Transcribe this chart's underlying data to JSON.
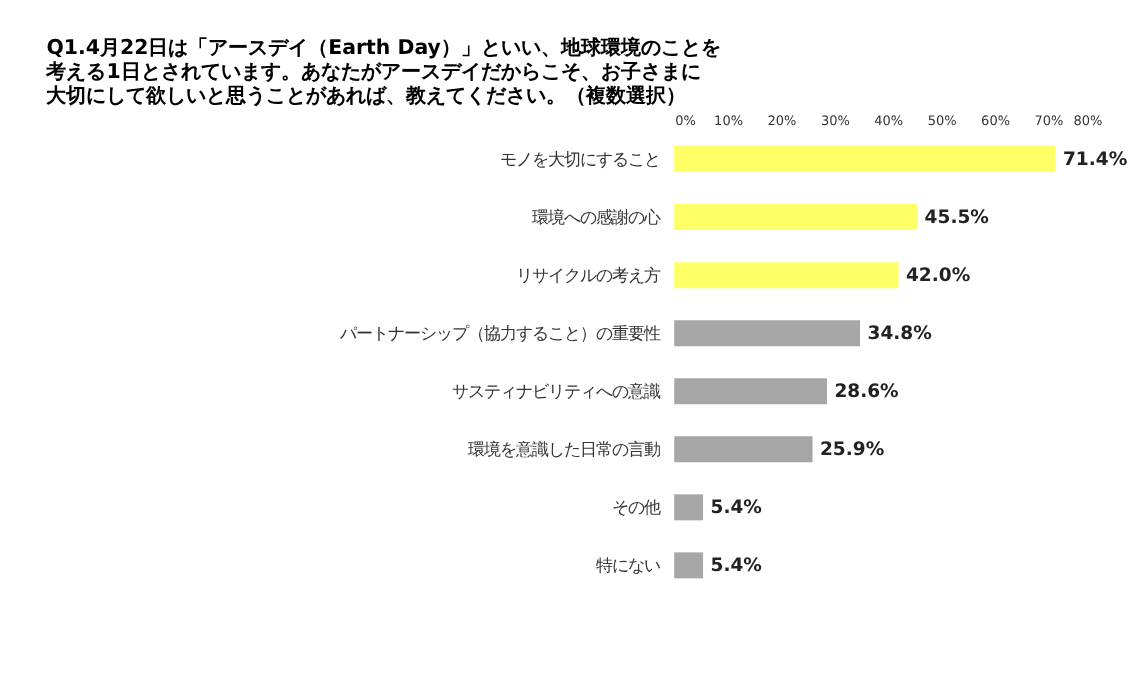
{
  "chart_data": {
    "type": "bar",
    "orientation": "horizontal",
    "title": [
      "Q1.4月22日は「アースデイ（Earth Day）」といい、地球環境のことを",
      "考える1日とされています。あなたがアースデイだからこそ、お子さまに",
      "大切にして欲しいと思うことがあれば、教えてください。（複数選択）"
    ],
    "categories": [
      "モノを大切にすること",
      "環境への感謝の心",
      "リサイクルの考え方",
      "パートナーシップ（協力すること）の重要性",
      "サスティナビリティへの意識",
      "環境を意識した日常の言動",
      "その他",
      "特にない"
    ],
    "values": [
      71.4,
      45.5,
      42.0,
      34.8,
      28.6,
      25.9,
      5.4,
      5.4
    ],
    "colors": [
      "#ffff66",
      "#ffff66",
      "#ffff66",
      "#a6a6a6",
      "#a6a6a6",
      "#a6a6a6",
      "#a6a6a6",
      "#a6a6a6"
    ],
    "value_labels": [
      "71.4%",
      "45.5%",
      "42.0%",
      "34.8%",
      "28.6%",
      "25.9%",
      "5.4%",
      "5.4%"
    ],
    "xlim": [
      0,
      80
    ],
    "xticks": [
      {
        "value": 0,
        "label": "0%"
      },
      {
        "value": 10,
        "label": "10%"
      },
      {
        "value": 20,
        "label": "20%"
      },
      {
        "value": 30,
        "label": "30%"
      },
      {
        "value": 40,
        "label": "40%"
      },
      {
        "value": 50,
        "label": "50%"
      },
      {
        "value": 60,
        "label": "60%"
      },
      {
        "value": 70,
        "label": "70%"
      },
      {
        "value": 80,
        "label": "80%"
      }
    ],
    "grid": false
  }
}
